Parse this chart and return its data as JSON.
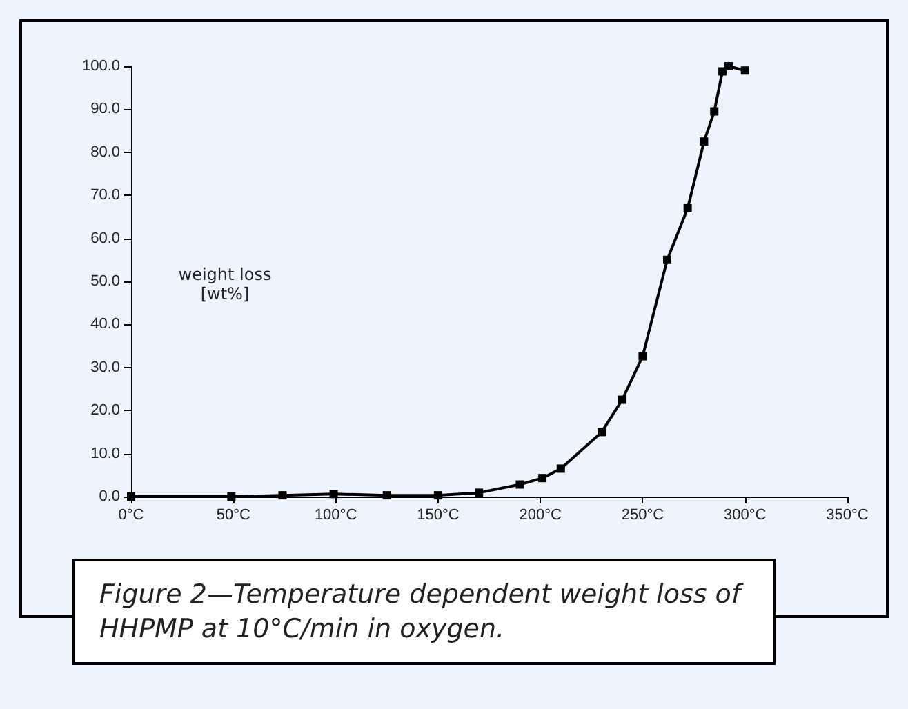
{
  "chart_data": {
    "type": "line",
    "ylabel": "weight loss [wt%]",
    "annotations": [
      "Figure 2—Temperature dependent weight loss of HHPMP at 10°C/min in oxygen."
    ],
    "x": [
      0,
      49,
      74,
      99,
      125,
      150,
      170,
      190,
      201,
      210,
      230,
      240,
      250,
      262,
      272,
      280,
      285,
      289,
      292,
      300
    ],
    "series": [
      {
        "color": "#000000",
        "values": [
          0,
          0,
          0.3,
          0.6,
          0.3,
          0.3,
          0.9,
          2.8,
          4.3,
          6.5,
          15,
          22.5,
          32.6,
          55,
          67,
          82.5,
          89.5,
          98.8,
          100,
          99
        ]
      }
    ],
    "xlim": [
      0,
      350
    ],
    "xticks": [
      {
        "value": 0,
        "label": "0°C"
      },
      {
        "value": 50,
        "label": "50°C"
      },
      {
        "value": 100,
        "label": "100°C"
      },
      {
        "value": 150,
        "label": "150°C"
      },
      {
        "value": 200,
        "label": "200°C"
      },
      {
        "value": 250,
        "label": "250°C"
      },
      {
        "value": 300,
        "label": "300°C"
      },
      {
        "value": 350,
        "label": "350°C"
      }
    ],
    "ylim": [
      0,
      100
    ],
    "yticks": [
      {
        "value": 0,
        "label": "0.0"
      },
      {
        "value": 10,
        "label": "10.0"
      },
      {
        "value": 20,
        "label": "20.0"
      },
      {
        "value": 30,
        "label": "30.0"
      },
      {
        "value": 40,
        "label": "40.0"
      },
      {
        "value": 50,
        "label": "50.0"
      },
      {
        "value": 60,
        "label": "60.0"
      },
      {
        "value": 70,
        "label": "70.0"
      },
      {
        "value": 80,
        "label": "80.0"
      },
      {
        "value": 90,
        "label": "90.0"
      },
      {
        "value": 100,
        "label": "100.0"
      }
    ],
    "marker": "square",
    "line_style": "solid"
  }
}
